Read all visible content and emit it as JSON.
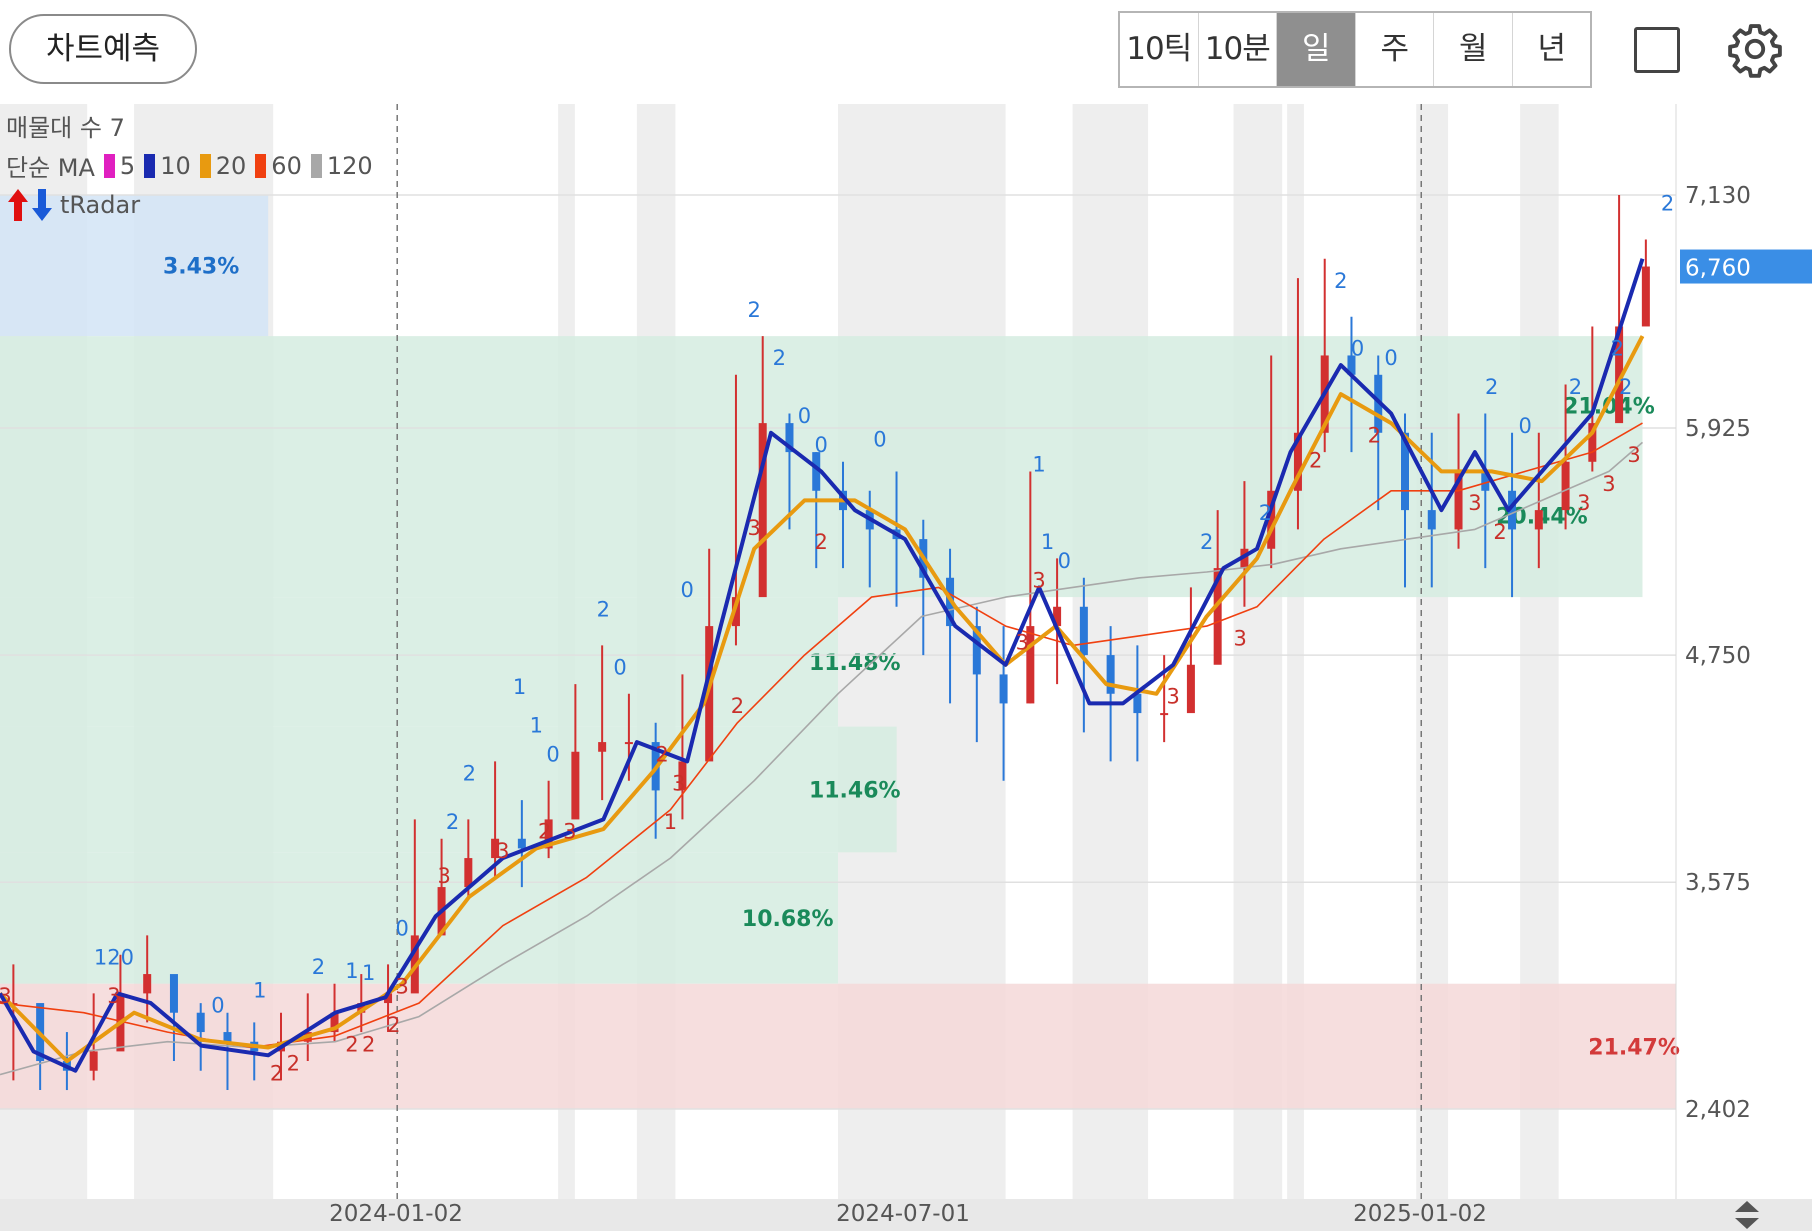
{
  "toolbar": {
    "predict_label": "차트예측",
    "periods": [
      "10틱",
      "10분",
      "일",
      "주",
      "월",
      "년"
    ],
    "active_period": "일",
    "square_icon": "square-icon",
    "settings_icon": "gear-icon"
  },
  "indicators": {
    "volume_profile": "매물대 수 7",
    "ma_type": "단순 MA",
    "ma_periods": [
      {
        "label": "5",
        "color": "#e020c0"
      },
      {
        "label": "10",
        "color": "#1a2ab0"
      },
      {
        "label": "20",
        "color": "#e89a10"
      },
      {
        "label": "60",
        "color": "#f04010"
      },
      {
        "label": "120",
        "color": "#a8a8a8"
      }
    ],
    "radar_label": "tRadar"
  },
  "chart_data": {
    "type": "candlestick",
    "price_axis": {
      "ticks": [
        "7,130",
        "5,925",
        "4,750",
        "3,575",
        "2,402"
      ],
      "current_price": "6,760",
      "current_price_color": "#3a8ee6"
    },
    "date_axis": {
      "ticks": [
        "2024-01-02",
        "2024-07-01",
        "2025-01-02"
      ]
    },
    "volume_zones": [
      {
        "label": "3.43%",
        "price_from": 6400,
        "price_to": 7130,
        "color": "#1e6fc8"
      },
      {
        "label": "21.04%",
        "price_from": 5050,
        "price_to": 6400,
        "color": "#1a8a5a"
      },
      {
        "label": "20.44%",
        "price_from": 5050,
        "price_to": 6400,
        "color": "#1a8a5a"
      },
      {
        "label": "11.48%",
        "price_from": 4380,
        "price_to": 5050,
        "color": "#1a8a5a"
      },
      {
        "label": "11.46%",
        "price_from": 3730,
        "price_to": 4380,
        "color": "#1a8a5a"
      },
      {
        "label": "10.68%",
        "price_from": 3050,
        "price_to": 3730,
        "color": "#1a8a5a"
      },
      {
        "label": "21.47%",
        "price_from": 2402,
        "price_to": 3050,
        "color": "#d33a3a"
      }
    ],
    "series": [
      {
        "name": "5",
        "color": "#e020c0"
      },
      {
        "name": "10",
        "color": "#1a2ab0"
      },
      {
        "name": "20",
        "color": "#e89a10"
      },
      {
        "name": "60",
        "color": "#f04010"
      },
      {
        "name": "120",
        "color": "#a8a8a8"
      }
    ],
    "ma_line_points": {
      "ma10": [
        [
          0,
          3000
        ],
        [
          0.02,
          2700
        ],
        [
          0.045,
          2600
        ],
        [
          0.07,
          3000
        ],
        [
          0.09,
          2950
        ],
        [
          0.12,
          2730
        ],
        [
          0.16,
          2680
        ],
        [
          0.2,
          2900
        ],
        [
          0.23,
          2980
        ],
        [
          0.26,
          3400
        ],
        [
          0.3,
          3700
        ],
        [
          0.33,
          3800
        ],
        [
          0.36,
          3900
        ],
        [
          0.38,
          4300
        ],
        [
          0.41,
          4200
        ],
        [
          0.43,
          4900
        ],
        [
          0.46,
          5900
        ],
        [
          0.49,
          5700
        ],
        [
          0.51,
          5500
        ],
        [
          0.54,
          5350
        ],
        [
          0.57,
          4900
        ],
        [
          0.6,
          4700
        ],
        [
          0.62,
          5100
        ],
        [
          0.65,
          4500
        ],
        [
          0.67,
          4500
        ],
        [
          0.7,
          4700
        ],
        [
          0.73,
          5200
        ],
        [
          0.75,
          5300
        ],
        [
          0.77,
          5800
        ],
        [
          0.8,
          6250
        ],
        [
          0.83,
          6000
        ],
        [
          0.86,
          5500
        ],
        [
          0.88,
          5800
        ],
        [
          0.9,
          5500
        ],
        [
          0.93,
          5800
        ],
        [
          0.95,
          6000
        ],
        [
          0.98,
          6800
        ]
      ],
      "ma20": [
        [
          0,
          3000
        ],
        [
          0.04,
          2650
        ],
        [
          0.08,
          2900
        ],
        [
          0.12,
          2760
        ],
        [
          0.16,
          2720
        ],
        [
          0.2,
          2820
        ],
        [
          0.24,
          3050
        ],
        [
          0.28,
          3500
        ],
        [
          0.32,
          3750
        ],
        [
          0.36,
          3850
        ],
        [
          0.39,
          4150
        ],
        [
          0.42,
          4500
        ],
        [
          0.45,
          5300
        ],
        [
          0.48,
          5550
        ],
        [
          0.51,
          5550
        ],
        [
          0.54,
          5400
        ],
        [
          0.57,
          5000
        ],
        [
          0.6,
          4700
        ],
        [
          0.63,
          4900
        ],
        [
          0.66,
          4600
        ],
        [
          0.69,
          4550
        ],
        [
          0.72,
          4950
        ],
        [
          0.75,
          5250
        ],
        [
          0.77,
          5600
        ],
        [
          0.8,
          6100
        ],
        [
          0.83,
          5950
        ],
        [
          0.86,
          5700
        ],
        [
          0.89,
          5700
        ],
        [
          0.92,
          5650
        ],
        [
          0.95,
          5900
        ],
        [
          0.98,
          6400
        ]
      ],
      "ma60": [
        [
          0,
          2950
        ],
        [
          0.05,
          2900
        ],
        [
          0.1,
          2800
        ],
        [
          0.15,
          2720
        ],
        [
          0.2,
          2780
        ],
        [
          0.25,
          2950
        ],
        [
          0.3,
          3350
        ],
        [
          0.35,
          3600
        ],
        [
          0.4,
          3950
        ],
        [
          0.44,
          4400
        ],
        [
          0.48,
          4750
        ],
        [
          0.52,
          5050
        ],
        [
          0.56,
          5100
        ],
        [
          0.6,
          4900
        ],
        [
          0.64,
          4800
        ],
        [
          0.68,
          4850
        ],
        [
          0.72,
          4900
        ],
        [
          0.75,
          5000
        ],
        [
          0.79,
          5350
        ],
        [
          0.83,
          5600
        ],
        [
          0.87,
          5600
        ],
        [
          0.91,
          5700
        ],
        [
          0.95,
          5800
        ],
        [
          0.98,
          5950
        ]
      ],
      "ma120": [
        [
          0,
          2580
        ],
        [
          0.05,
          2700
        ],
        [
          0.1,
          2750
        ],
        [
          0.15,
          2720
        ],
        [
          0.2,
          2750
        ],
        [
          0.25,
          2880
        ],
        [
          0.3,
          3150
        ],
        [
          0.35,
          3400
        ],
        [
          0.4,
          3700
        ],
        [
          0.45,
          4100
        ],
        [
          0.5,
          4550
        ],
        [
          0.55,
          4950
        ],
        [
          0.6,
          5050
        ],
        [
          0.64,
          5100
        ],
        [
          0.68,
          5150
        ],
        [
          0.72,
          5180
        ],
        [
          0.76,
          5220
        ],
        [
          0.8,
          5300
        ],
        [
          0.84,
          5350
        ],
        [
          0.88,
          5400
        ],
        [
          0.92,
          5550
        ],
        [
          0.96,
          5700
        ],
        [
          0.98,
          5850
        ]
      ]
    },
    "candles": {
      "closes": [
        2950,
        2650,
        2600,
        2700,
        3000,
        3100,
        2900,
        2800,
        2750,
        2700,
        2750,
        2800,
        2900,
        2950,
        3000,
        3300,
        3550,
        3700,
        3800,
        3750,
        3900,
        4250,
        4300,
        4300,
        4050,
        4200,
        4900,
        5050,
        5950,
        5800,
        5600,
        5500,
        5400,
        5350,
        5150,
        4900,
        4650,
        4500,
        4900,
        5000,
        4750,
        4550,
        4450,
        4450,
        4700,
        5200,
        5300,
        5600,
        5900,
        6300,
        6200,
        5900,
        5500,
        5400,
        5700,
        5600,
        5400,
        5500,
        5750,
        5950,
        6450,
        6760
      ],
      "highs": [
        3150,
        2900,
        2800,
        3000,
        3200,
        3300,
        3050,
        2950,
        2900,
        2850,
        2900,
        3000,
        3050,
        3100,
        3150,
        3900,
        3800,
        3900,
        4200,
        4000,
        4100,
        4600,
        4800,
        4550,
        4400,
        4650,
        5300,
        6200,
        6400,
        6000,
        5800,
        5750,
        5600,
        5700,
        5450,
        5300,
        5000,
        4900,
        5700,
        5250,
        5150,
        4900,
        4800,
        4750,
        5100,
        5500,
        5650,
        6300,
        6700,
        6800,
        6500,
        6300,
        6000,
        5900,
        6000,
        6000,
        5900,
        5900,
        6150,
        6450,
        7130,
        6900
      ],
      "lows": [
        2550,
        2500,
        2500,
        2550,
        2800,
        2850,
        2650,
        2600,
        2500,
        2550,
        2550,
        2650,
        2750,
        2800,
        2800,
        3100,
        3350,
        3500,
        3600,
        3550,
        3700,
        3950,
        4000,
        4100,
        3800,
        3900,
        4400,
        4800,
        5350,
        5400,
        5200,
        5200,
        5100,
        5000,
        4750,
        4500,
        4300,
        4100,
        4500,
        4600,
        4350,
        4200,
        4200,
        4300,
        4500,
        4900,
        5000,
        5200,
        5400,
        5800,
        5800,
        5500,
        5100,
        5100,
        5300,
        5200,
        5050,
        5200,
        5400,
        5700,
        6100,
        6500
      ]
    },
    "signal_labels_blue": [
      [
        "1",
        0.06,
        3150
      ],
      [
        "20",
        0.072,
        3150
      ],
      [
        "0",
        0.13,
        2900
      ],
      [
        "1",
        0.155,
        2980
      ],
      [
        "2",
        0.19,
        3100
      ],
      [
        "1",
        0.21,
        3080
      ],
      [
        "1",
        0.22,
        3070
      ],
      [
        "0",
        0.24,
        3300
      ],
      [
        "2",
        0.27,
        3850
      ],
      [
        "2",
        0.28,
        4100
      ],
      [
        "1",
        0.31,
        4550
      ],
      [
        "1",
        0.32,
        4350
      ],
      [
        "0",
        0.33,
        4200
      ],
      [
        "2",
        0.36,
        4950
      ],
      [
        "0",
        0.37,
        4650
      ],
      [
        "0",
        0.41,
        5050
      ],
      [
        "2",
        0.45,
        6500
      ],
      [
        "2",
        0.465,
        6250
      ],
      [
        "0",
        0.48,
        5950
      ],
      [
        "0",
        0.49,
        5800
      ],
      [
        "0",
        0.525,
        5830
      ],
      [
        "1",
        0.62,
        5700
      ],
      [
        "1",
        0.625,
        5300
      ],
      [
        "0",
        0.635,
        5200
      ],
      [
        "2",
        0.72,
        5300
      ],
      [
        "2",
        0.755,
        5450
      ],
      [
        "2",
        0.8,
        6650
      ],
      [
        "0",
        0.81,
        6300
      ],
      [
        "0",
        0.83,
        6250
      ],
      [
        "2",
        0.89,
        6100
      ],
      [
        "0",
        0.91,
        5900
      ],
      [
        "2",
        0.94,
        6100
      ],
      [
        "2",
        0.965,
        6300
      ],
      [
        "2",
        0.97,
        6100
      ],
      [
        "2",
        0.995,
        7050
      ]
    ],
    "signal_labels_red": [
      [
        "3",
        0.003,
        2950
      ],
      [
        "3",
        0.068,
        2950
      ],
      [
        "2",
        0.165,
        2550
      ],
      [
        "2",
        0.175,
        2600
      ],
      [
        "2",
        0.21,
        2700
      ],
      [
        "2",
        0.22,
        2700
      ],
      [
        "3",
        0.24,
        3000
      ],
      [
        "2",
        0.235,
        2800
      ],
      [
        "3",
        0.265,
        3570
      ],
      [
        "3",
        0.3,
        3700
      ],
      [
        "2",
        0.325,
        3800
      ],
      [
        "3",
        0.34,
        3800
      ],
      [
        "2",
        0.395,
        4200
      ],
      [
        "3",
        0.405,
        4050
      ],
      [
        "1",
        0.4,
        3850
      ],
      [
        "2",
        0.44,
        4450
      ],
      [
        "3",
        0.45,
        5370
      ],
      [
        "2",
        0.49,
        5300
      ],
      [
        "3",
        0.61,
        4780
      ],
      [
        "3",
        0.62,
        5100
      ],
      [
        "3",
        0.7,
        4500
      ],
      [
        "3",
        0.74,
        4800
      ],
      [
        "2",
        0.785,
        5720
      ],
      [
        "2",
        0.82,
        5850
      ],
      [
        "3",
        0.88,
        5500
      ],
      [
        "2",
        0.895,
        5350
      ],
      [
        "3",
        0.945,
        5500
      ],
      [
        "3",
        0.96,
        5600
      ],
      [
        "3",
        0.975,
        5750
      ]
    ]
  }
}
